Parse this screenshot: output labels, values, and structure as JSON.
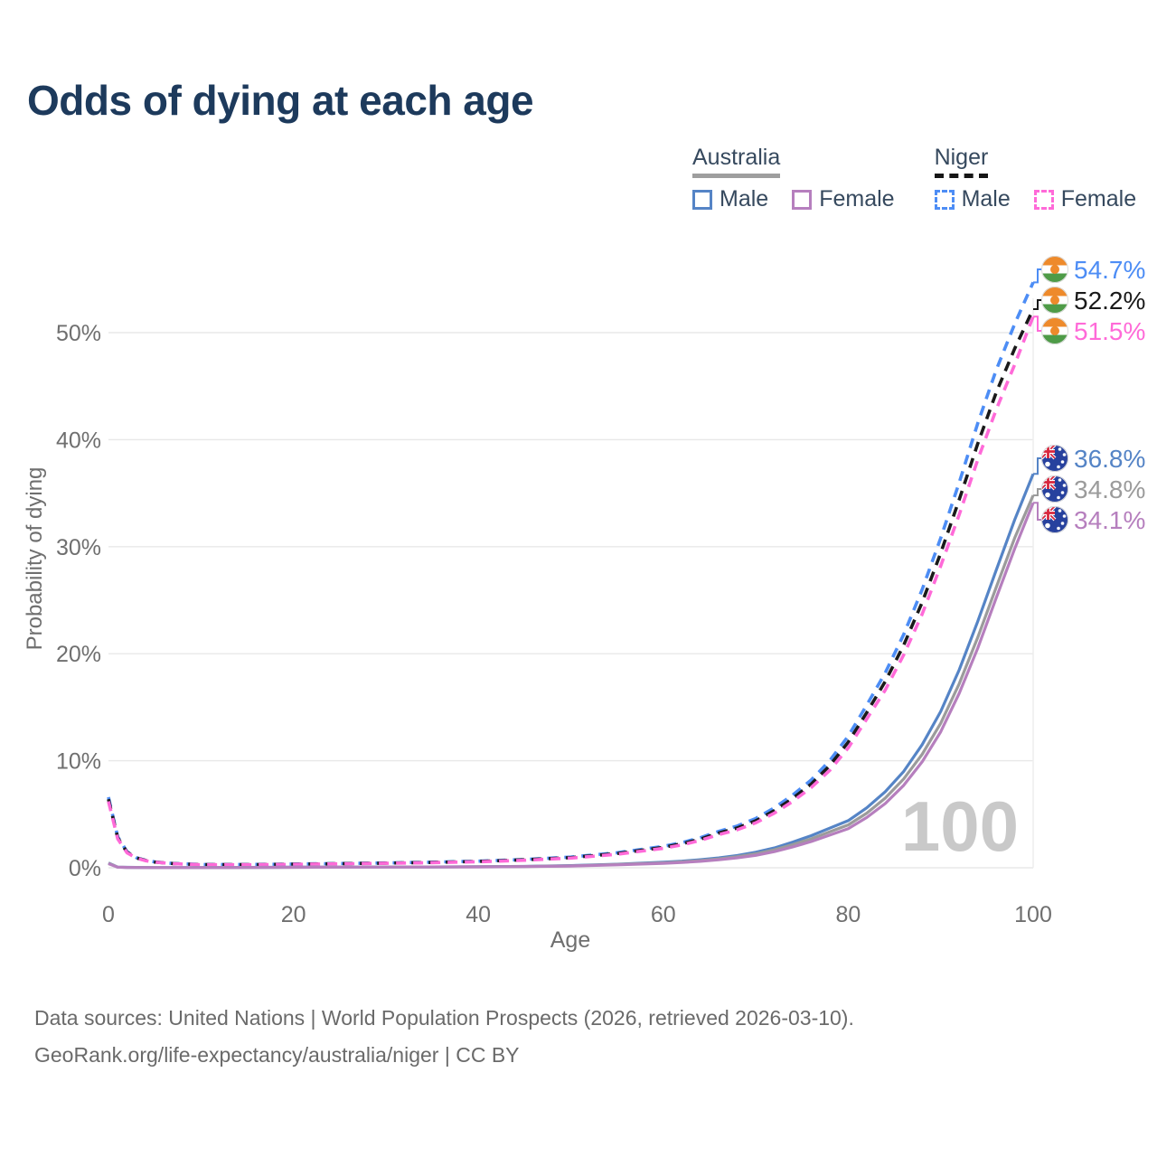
{
  "title": "Odds of dying at each age",
  "legend": {
    "groups": [
      {
        "id": "australia",
        "label": "Australia",
        "underline": "solid",
        "underline_color": "#9e9e9e",
        "items": [
          {
            "label": "Male",
            "color": "#5584c6",
            "dashed": false
          },
          {
            "label": "Female",
            "color": "#b67fbe",
            "dashed": false
          }
        ]
      },
      {
        "id": "niger",
        "label": "Niger",
        "underline": "dashed",
        "underline_color": "#161616",
        "items": [
          {
            "label": "Male",
            "color": "#4d8df5",
            "dashed": true
          },
          {
            "label": "Female",
            "color": "#ff6ad8",
            "dashed": true
          }
        ]
      }
    ]
  },
  "chart_data": {
    "type": "line",
    "title": "Odds of dying at each age",
    "xlabel": "Age",
    "ylabel": "Probability of dying",
    "xlim": [
      0,
      100
    ],
    "ylim": [
      0,
      57
    ],
    "grid": "horizontal",
    "legend_position": "top-right",
    "age_counter": "100",
    "x_ticks": [
      {
        "value": 0,
        "label": "0"
      },
      {
        "value": 20,
        "label": "20"
      },
      {
        "value": 40,
        "label": "40"
      },
      {
        "value": 60,
        "label": "60"
      },
      {
        "value": 80,
        "label": "80"
      },
      {
        "value": 100,
        "label": "100"
      }
    ],
    "y_ticks": [
      {
        "value": 0,
        "label": "0%"
      },
      {
        "value": 10,
        "label": "10%"
      },
      {
        "value": 20,
        "label": "20%"
      },
      {
        "value": 30,
        "label": "30%"
      },
      {
        "value": 40,
        "label": "40%"
      },
      {
        "value": 50,
        "label": "50%"
      }
    ],
    "ages": [
      0,
      1,
      2,
      3,
      4,
      5,
      7,
      10,
      15,
      20,
      25,
      30,
      35,
      40,
      45,
      50,
      55,
      60,
      62,
      64,
      66,
      68,
      70,
      72,
      74,
      76,
      78,
      80,
      82,
      84,
      86,
      88,
      90,
      92,
      94,
      96,
      98,
      100
    ],
    "series": [
      {
        "name": "Niger Male",
        "country": "niger",
        "sex": "male",
        "color": "#4d8df5",
        "dash": true,
        "end_label": "54.7%",
        "values": [
          6.6,
          2.9,
          1.5,
          0.95,
          0.7,
          0.55,
          0.4,
          0.3,
          0.3,
          0.35,
          0.4,
          0.45,
          0.52,
          0.62,
          0.78,
          1.0,
          1.4,
          2.0,
          2.35,
          2.8,
          3.4,
          3.9,
          4.6,
          5.6,
          6.8,
          8.2,
          10.0,
          12.3,
          15.2,
          18.2,
          21.8,
          26.0,
          30.8,
          36.0,
          41.5,
          46.5,
          50.8,
          54.7
        ]
      },
      {
        "name": "Niger Both sexes",
        "country": "niger",
        "sex": "both",
        "color": "#1a1a1a",
        "dash": true,
        "end_label": "52.2%",
        "values": [
          6.4,
          2.8,
          1.45,
          0.92,
          0.68,
          0.53,
          0.39,
          0.29,
          0.29,
          0.33,
          0.38,
          0.43,
          0.5,
          0.59,
          0.74,
          0.95,
          1.33,
          1.9,
          2.24,
          2.67,
          3.24,
          3.72,
          4.38,
          5.34,
          6.48,
          7.82,
          9.54,
          11.74,
          14.5,
          17.4,
          20.8,
          24.8,
          29.4,
          34.4,
          39.6,
          44.4,
          48.5,
          52.2
        ]
      },
      {
        "name": "Niger Female",
        "country": "niger",
        "sex": "female",
        "color": "#ff6ad8",
        "dash": true,
        "end_label": "51.5%",
        "values": [
          6.2,
          2.7,
          1.4,
          0.9,
          0.66,
          0.52,
          0.38,
          0.28,
          0.28,
          0.31,
          0.36,
          0.41,
          0.47,
          0.56,
          0.7,
          0.9,
          1.26,
          1.82,
          2.14,
          2.55,
          3.1,
          3.55,
          4.2,
          5.1,
          6.2,
          7.5,
          9.1,
          11.2,
          13.9,
          16.6,
          19.9,
          23.7,
          28.2,
          33.0,
          38.1,
          42.8,
          47.0,
          51.5
        ]
      },
      {
        "name": "Australia Male",
        "country": "australia",
        "sex": "male",
        "color": "#5584c6",
        "dash": false,
        "end_label": "36.8%",
        "values": [
          0.45,
          0.06,
          0.04,
          0.03,
          0.025,
          0.02,
          0.02,
          0.015,
          0.03,
          0.05,
          0.06,
          0.07,
          0.08,
          0.1,
          0.13,
          0.2,
          0.33,
          0.52,
          0.62,
          0.75,
          0.92,
          1.15,
          1.45,
          1.85,
          2.4,
          3.0,
          3.7,
          4.4,
          5.6,
          7.1,
          9.0,
          11.5,
          14.6,
          18.5,
          23.0,
          27.8,
          32.5,
          36.8
        ]
      },
      {
        "name": "Australia Both sexes",
        "country": "australia",
        "sex": "both",
        "color": "#9b9b9b",
        "dash": false,
        "end_label": "34.8%",
        "values": [
          0.42,
          0.055,
          0.037,
          0.028,
          0.023,
          0.018,
          0.018,
          0.014,
          0.027,
          0.045,
          0.055,
          0.065,
          0.075,
          0.09,
          0.12,
          0.18,
          0.3,
          0.46,
          0.55,
          0.67,
          0.83,
          1.04,
          1.3,
          1.67,
          2.16,
          2.7,
          3.35,
          4.0,
          5.1,
          6.5,
          8.3,
          10.6,
          13.5,
          17.2,
          21.5,
          26.2,
          30.8,
          34.8
        ]
      },
      {
        "name": "Australia Female",
        "country": "australia",
        "sex": "female",
        "color": "#b67fbe",
        "dash": false,
        "end_label": "34.1%",
        "values": [
          0.38,
          0.05,
          0.034,
          0.026,
          0.021,
          0.017,
          0.017,
          0.013,
          0.024,
          0.04,
          0.05,
          0.06,
          0.07,
          0.08,
          0.11,
          0.16,
          0.27,
          0.41,
          0.49,
          0.6,
          0.74,
          0.93,
          1.16,
          1.5,
          1.95,
          2.45,
          3.05,
          3.65,
          4.7,
          6.0,
          7.7,
          9.9,
          12.7,
          16.3,
          20.5,
          25.2,
          29.8,
          34.1
        ]
      }
    ]
  },
  "flags": {
    "niger": {
      "orange": "#ee8a2b",
      "white": "#ffffff",
      "green": "#4e9b47"
    },
    "australia": {
      "blue": "#27419e",
      "red": "#d8263d",
      "white": "#ffffff"
    }
  },
  "colors": {
    "background": "#ffffff",
    "title": "#1d3a5c",
    "axis_text": "#6f6f6f",
    "gridline": "#e8e8e8",
    "watermark": "#c9c9c9",
    "footer_text": "#6a6a6a",
    "legend_text": "#36495e"
  },
  "footer": {
    "line1": "Data sources: United Nations | World Population Prospects (2026, retrieved 2026-03-10).",
    "line2": "GeoRank.org/life-expectancy/australia/niger | CC BY"
  }
}
